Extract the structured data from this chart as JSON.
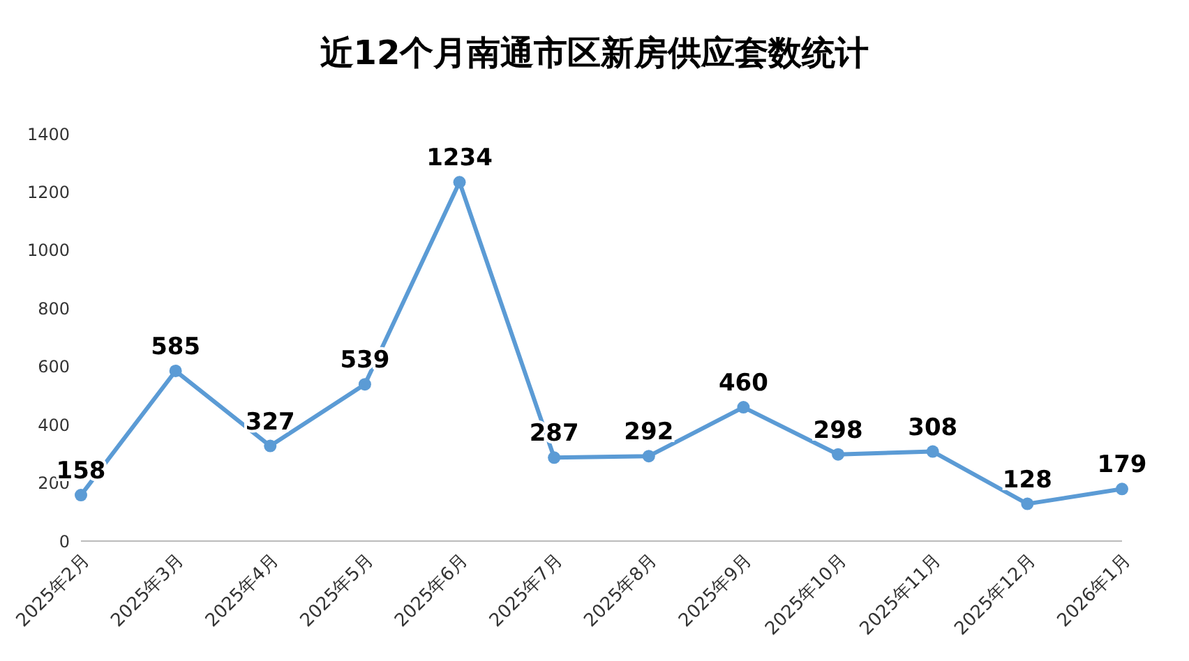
{
  "chart_data": {
    "type": "line",
    "title": "近12个月南通市区新房供应套数统计",
    "categories": [
      "2025年2月",
      "2025年3月",
      "2025年4月",
      "2025年5月",
      "2025年6月",
      "2025年7月",
      "2025年8月",
      "2025年9月",
      "2025年10月",
      "2025年11月",
      "2025年12月",
      "2026年1月"
    ],
    "series": [
      {
        "color": "#5b9bd5",
        "values": [
          158,
          585,
          327,
          539,
          1234,
          287,
          292,
          460,
          298,
          308,
          128,
          179
        ]
      }
    ],
    "ylim": [
      0,
      1400
    ],
    "yticks": [
      0,
      200,
      400,
      600,
      800,
      1000,
      1200,
      1400
    ],
    "data_labels": true,
    "marker": "circle",
    "grid": false
  }
}
